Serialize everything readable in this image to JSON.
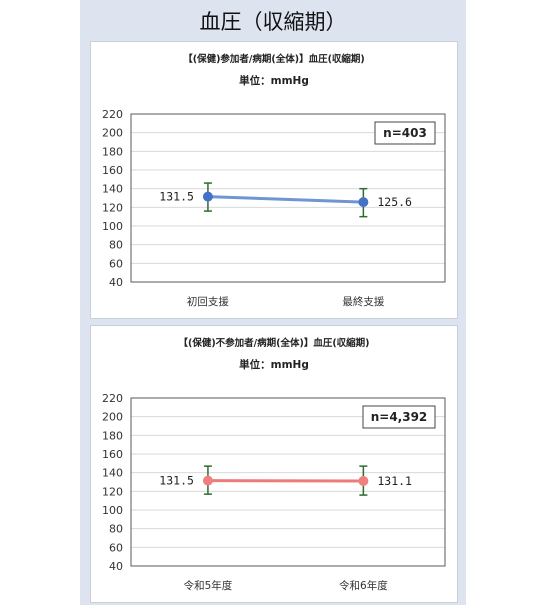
{
  "page_title": "血圧（収縮期）",
  "colors": {
    "background": "#dde4f0",
    "series_blue": "#6f95d3",
    "series_red": "#ee7a7a",
    "marker_blue": "#4472c4",
    "marker_red": "#f08080",
    "error_bar": "#2e6b2e",
    "gridline": "#d9d9d9"
  },
  "chart_data": [
    {
      "type": "line",
      "title": "【(保健)参加者/病期(全体)】血圧(収縮期)",
      "subtitle": "単位：mmHg",
      "categories": [
        "初回支援",
        "最終支援"
      ],
      "series": [
        {
          "values": [
            131.5,
            125.6
          ],
          "error_low": [
            116,
            110
          ],
          "error_high": [
            146,
            140
          ],
          "color": "#6f95d3"
        }
      ],
      "data_labels": [
        "131.5",
        "125.6"
      ],
      "annotation": "n=403",
      "ylim": [
        40,
        220
      ],
      "yticks": [
        "220",
        "200",
        "180",
        "160",
        "140",
        "120",
        "100",
        "80",
        "60",
        "40"
      ],
      "grid": true,
      "xlabel": "",
      "ylabel": ""
    },
    {
      "type": "line",
      "title": "【(保健)不参加者/病期(全体)】血圧(収縮期)",
      "subtitle": "単位：mmHg",
      "categories": [
        "令和5年度",
        "令和6年度"
      ],
      "series": [
        {
          "values": [
            131.5,
            131.1
          ],
          "error_low": [
            117,
            116
          ],
          "error_high": [
            147,
            147
          ],
          "color": "#ee7a7a"
        }
      ],
      "data_labels": [
        "131.5",
        "131.1"
      ],
      "annotation": "n=4,392",
      "ylim": [
        40,
        220
      ],
      "yticks": [
        "220",
        "200",
        "180",
        "160",
        "140",
        "120",
        "100",
        "80",
        "60",
        "40"
      ],
      "grid": true,
      "xlabel": "",
      "ylabel": ""
    }
  ]
}
